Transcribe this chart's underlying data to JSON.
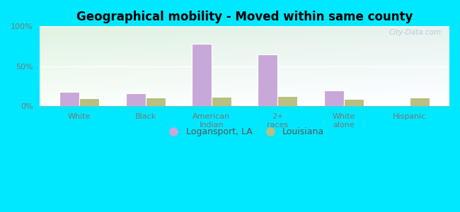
{
  "title": "Geographical mobility - Moved within same county",
  "categories": [
    "White",
    "Black",
    "American\nIndian",
    "2+\nraces",
    "White\nalone",
    "Hispanic"
  ],
  "logansport": [
    18,
    16,
    78,
    65,
    20,
    0
  ],
  "louisiana": [
    10,
    11,
    12,
    13,
    9,
    11
  ],
  "logansport_color": "#c8a8d8",
  "louisiana_color": "#b8bf80",
  "background_outer": "#00e8ff",
  "title_fontsize": 12,
  "legend_logansport": "Logansport, LA",
  "legend_louisiana": "Louisiana",
  "ylim": [
    0,
    100
  ],
  "yticks": [
    0,
    50,
    100
  ],
  "ytick_labels": [
    "0%",
    "50%",
    "100%"
  ],
  "bar_width": 0.3,
  "watermark": "City-Data.com"
}
